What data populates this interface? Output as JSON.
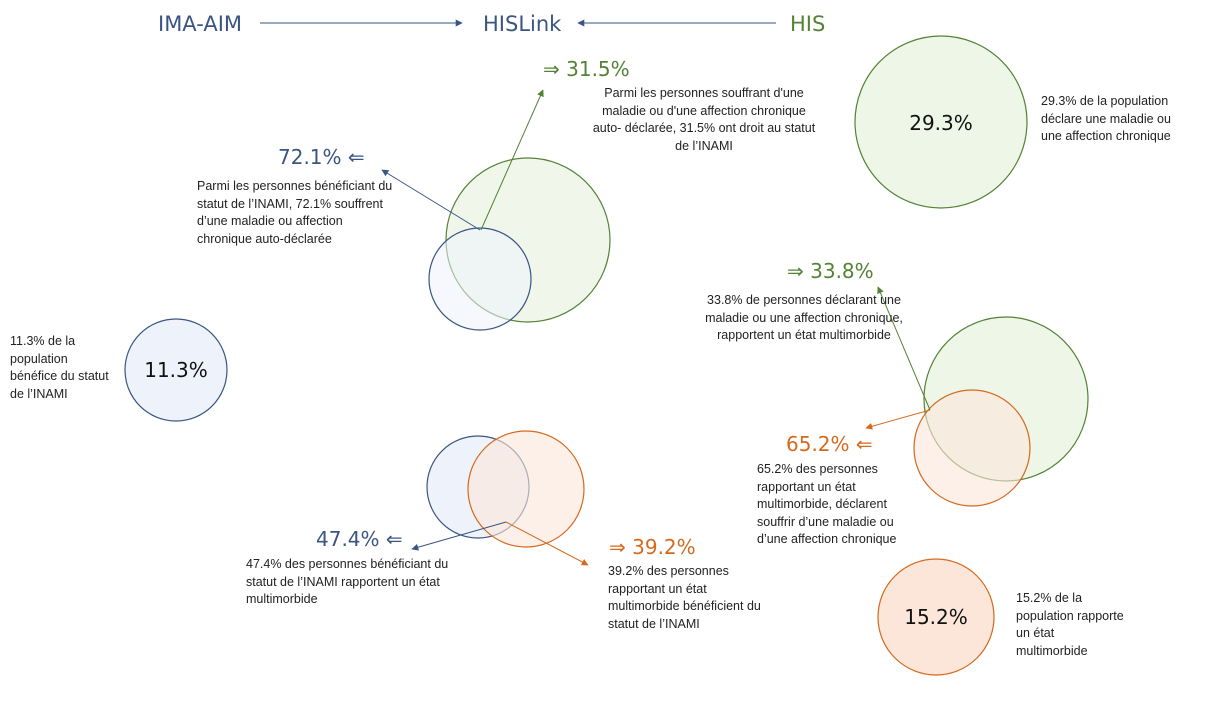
{
  "header": {
    "left_label": "IMA-AIM",
    "center_label": "HISLink",
    "right_label": "HIS"
  },
  "colors": {
    "blue": "#3a5583",
    "green": "#548235",
    "orange": "#d46a1f",
    "blue_fill": "#eef3fb",
    "green_fill": "#eef6e8",
    "orange_fill": "#fbe6d9"
  },
  "arrow_symbols": {
    "right": "⇒",
    "left": "⇐"
  },
  "single_circles": {
    "inami_value": "11.3%",
    "inami_desc": "11.3% de la population bénéfice du statut de l’INAMI",
    "chronic_value": "29.3%",
    "chronic_desc": "29.3% de la population déclare une maladie ou une affection chronique",
    "multimorbid_value": "15.2%",
    "multimorbid_desc": "15.2% de la population rapporte un état multimorbide"
  },
  "venn_inami_chronic": {
    "right_value": "31.5%",
    "right_desc": "Parmi les personnes souffrant d'une maladie ou d'une affection chronique auto- déclarée, 31.5% ont droit au statut de l’INAMI",
    "left_value": "72.1%",
    "left_desc": "Parmi les personnes bénéficiant du statut de l’INAMI, 72.1% souffrent d’une maladie ou affection chronique auto-déclarée"
  },
  "venn_chronic_multimorbid": {
    "top_value": "33.8%",
    "top_desc": "33.8% de personnes déclarant une maladie ou une affection chronique, rapportent un état multimorbide",
    "bottom_value": "65.2%",
    "bottom_desc": "65.2% des personnes rapportant un état multimorbide, déclarent souffrir d’une maladie ou d’une affection chronique"
  },
  "venn_inami_multimorbid": {
    "left_value": "47.4%",
    "left_desc": "47.4% des personnes bénéficiant du statut de l’INAMI rapportent un état multimorbide",
    "right_value": "39.2%",
    "right_desc": "39.2% des personnes rapportant un état multimorbide bénéficient du statut de l’INAMI"
  }
}
